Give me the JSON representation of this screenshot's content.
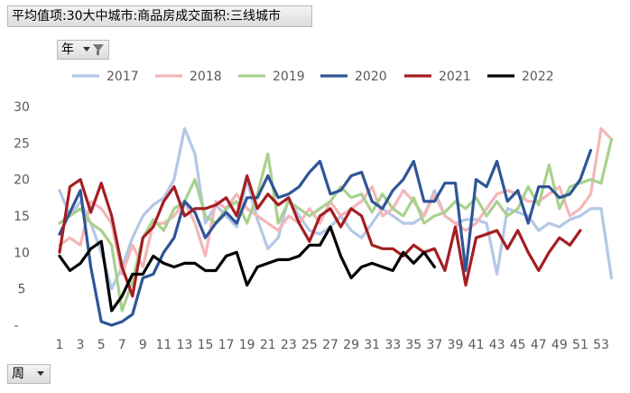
{
  "header": {
    "title": "平均值项:30大中城市:商品房成交面积:三线城市",
    "year_field": "年",
    "week_field": "周"
  },
  "chart_data": {
    "type": "line",
    "xlabel": "",
    "ylabel": "",
    "ylim": [
      0,
      30
    ],
    "yticks": [
      5,
      10,
      15,
      20,
      25,
      30
    ],
    "ytick_zero_label": "-",
    "xtick_labels": [
      "1",
      "3",
      "5",
      "7",
      "9",
      "11",
      "13",
      "15",
      "17",
      "19",
      "21",
      "23",
      "25",
      "27",
      "29",
      "31",
      "33",
      "35",
      "37",
      "39",
      "41",
      "43",
      "45",
      "47",
      "49",
      "51",
      "53"
    ],
    "legend_position": "top",
    "grid": false,
    "series": [
      {
        "name": "2017",
        "color": "#B4C7E7",
        "values": [
          18.5,
          15,
          17,
          14,
          10,
          5,
          8,
          12,
          15,
          16.5,
          17.5,
          20,
          27,
          23.5,
          14,
          16.5,
          15,
          13.5,
          20,
          14.5,
          10.5,
          12,
          17.5,
          15,
          13,
          12.5,
          13.5,
          15,
          13,
          12,
          14,
          16,
          15,
          14,
          14,
          15,
          18.5,
          15,
          14,
          14.5,
          14.5,
          14,
          7,
          16,
          15.5,
          15,
          13,
          14,
          13.5,
          14.5,
          15,
          16,
          16,
          6.5
        ]
      },
      {
        "name": "2018",
        "color": "#F4B6B8",
        "values": [
          11,
          12,
          11,
          17,
          16,
          14,
          7,
          11,
          8,
          14,
          14,
          15,
          17,
          14,
          9.5,
          17,
          16,
          18,
          16,
          15,
          14,
          13,
          15,
          14,
          16,
          14,
          17,
          15,
          16,
          17,
          19,
          15,
          16,
          18.5,
          17,
          15,
          18,
          15,
          14,
          13,
          14,
          16,
          18,
          18.5,
          18,
          17,
          17,
          18,
          19,
          15,
          16,
          18,
          27,
          25.5
        ]
      },
      {
        "name": "2019",
        "color": "#A9D18E",
        "values": [
          14,
          15,
          16,
          14,
          13,
          11,
          2,
          6,
          12,
          14.5,
          13,
          16,
          17,
          20,
          15,
          14,
          16,
          17,
          14,
          18,
          23.5,
          14,
          17,
          16,
          15,
          16,
          17,
          19,
          17.5,
          18,
          15.5,
          18,
          16,
          15,
          17.5,
          14,
          15,
          15.5,
          17,
          16,
          17.5,
          15,
          17,
          15,
          16,
          19,
          16.5,
          22,
          16,
          19,
          19.5,
          20,
          19.5,
          25.5
        ]
      },
      {
        "name": "2020",
        "color": "#2F5597",
        "values": [
          12.5,
          15.5,
          18.5,
          8,
          0.5,
          0,
          0.5,
          1.5,
          6.5,
          7,
          10,
          12,
          17,
          15.5,
          12,
          14,
          15.5,
          14,
          17.5,
          17.5,
          20.5,
          17.5,
          18,
          19,
          21,
          22.5,
          18,
          18.5,
          20.5,
          21,
          17,
          16,
          18.5,
          20,
          22.5,
          17,
          17,
          19.5,
          19.5,
          7.5,
          20,
          19,
          22.5,
          17,
          18.5,
          14,
          19,
          19,
          17.5,
          18,
          20,
          24
        ]
      },
      {
        "name": "2021",
        "color": "#A41E22",
        "values": [
          10,
          19,
          20,
          15.5,
          19.5,
          15,
          8,
          4,
          12,
          13.5,
          17,
          19,
          15,
          16,
          16,
          16.5,
          17.5,
          15,
          20.5,
          16,
          18,
          16.5,
          17.5,
          14,
          11.5,
          15,
          16,
          13.5,
          16,
          15,
          11,
          10.5,
          10.5,
          9.5,
          11,
          10,
          10.5,
          7.5,
          13.5,
          5.5,
          12,
          12.5,
          13,
          10.5,
          13,
          10,
          7.5,
          10,
          12,
          11,
          13
        ]
      },
      {
        "name": "2022",
        "color": "#000000",
        "values": [
          9.5,
          7.5,
          8.5,
          10.5,
          11.5,
          2,
          4,
          7,
          7,
          9.5,
          8.5,
          8,
          8.5,
          8.5,
          7.5,
          7.5,
          9.5,
          10,
          5.5,
          8,
          8.5,
          9,
          9,
          9.5,
          11,
          11,
          13.5,
          9.5,
          6.5,
          8,
          8.5,
          8,
          7.5,
          10,
          8.5,
          10,
          8
        ]
      }
    ]
  }
}
